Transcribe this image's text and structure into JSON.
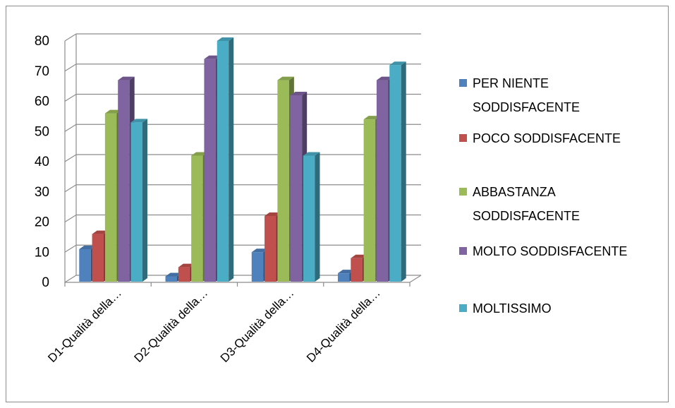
{
  "chart_data": {
    "type": "bar",
    "title": "",
    "xlabel": "",
    "ylabel": "",
    "ylim": [
      0,
      80
    ],
    "yticks": [
      0,
      10,
      20,
      30,
      40,
      50,
      60,
      70,
      80
    ],
    "grid": true,
    "legend_position": "right",
    "categories": [
      "D1-Qualità della…",
      "D2-Qualità della…",
      "D3-Qualità della…",
      "D4-Qualità della…"
    ],
    "series": [
      {
        "name": "PER NIENTE SODDISFACENTE",
        "legend_lines": [
          "PER NIENTE",
          "SODDISFACENTE"
        ],
        "color": "#4F81BD",
        "values": [
          11,
          2,
          10,
          3
        ]
      },
      {
        "name": "POCO SODDISFACENTE",
        "legend_lines": [
          "POCO SODDISFACENTE"
        ],
        "color": "#C0504D",
        "values": [
          16,
          5,
          22,
          8
        ]
      },
      {
        "name": "ABBASTANZA SODDISFACENTE",
        "legend_lines": [
          "ABBASTANZA",
          "SODDISFACENTE"
        ],
        "color": "#9BBB59",
        "values": [
          56,
          42,
          67,
          54
        ]
      },
      {
        "name": "MOLTO SODDISFACENTE",
        "legend_lines": [
          "MOLTO SODDISFACENTE"
        ],
        "color": "#8064A2",
        "values": [
          67,
          74,
          62,
          67
        ]
      },
      {
        "name": "MOLTISSIMO",
        "legend_lines": [
          "MOLTISSIMO"
        ],
        "color": "#4BACC6",
        "values": [
          53,
          80,
          42,
          72
        ]
      }
    ]
  }
}
